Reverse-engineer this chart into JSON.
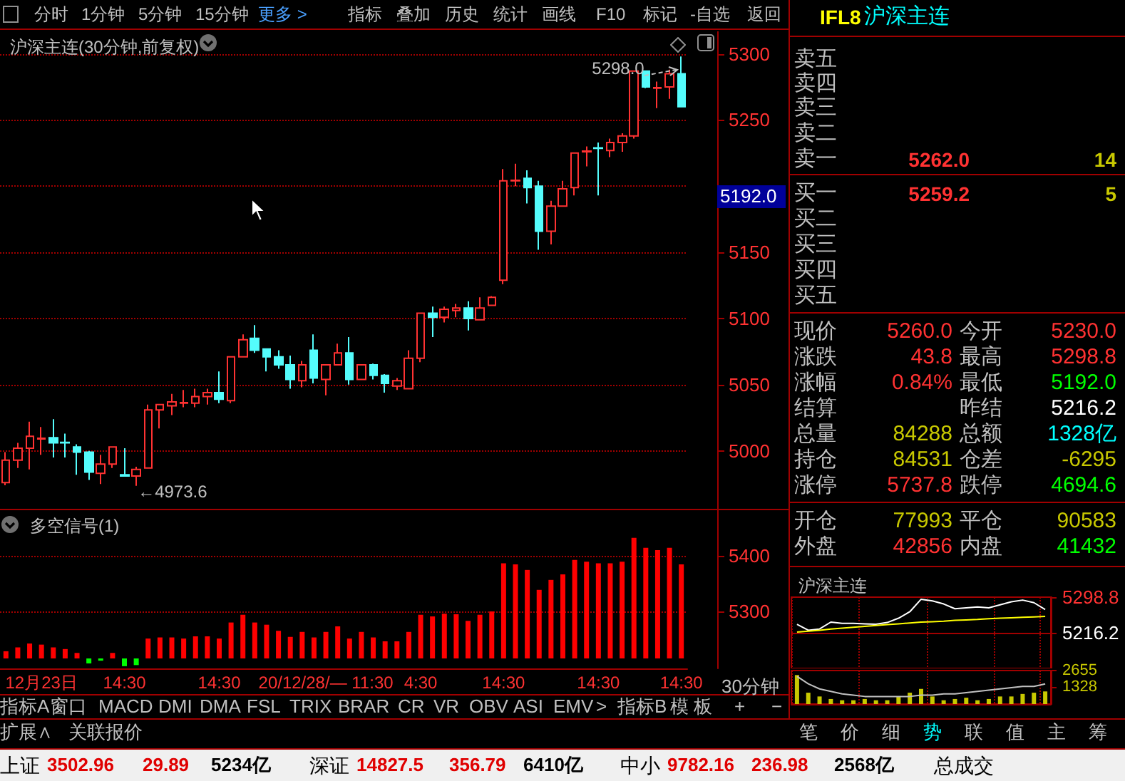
{
  "chart_data": [
    {
      "type": "other",
      "annotations": [
        "分时",
        "1分钟",
        "5分钟",
        "15分钟",
        "更多 >",
        "指标",
        "叠加",
        "历史",
        "统计",
        "画线",
        "F10",
        "标记",
        "-自选",
        "返回"
      ]
    },
    {
      "type": "candlestick",
      "title": "沪深主连(30分钟,前复权)",
      "categories": [
        null,
        null,
        null,
        null,
        null,
        null,
        null,
        null,
        null,
        null,
        null,
        null,
        null,
        null,
        null,
        null,
        null,
        null,
        null,
        null,
        null,
        null,
        null,
        null,
        null,
        null,
        null,
        null,
        null,
        null,
        null,
        null,
        null,
        null,
        null,
        null,
        null,
        null,
        null,
        null,
        null,
        null,
        null,
        null,
        null,
        null,
        null,
        null,
        null,
        null,
        null,
        null,
        null,
        null,
        null,
        null,
        null,
        null
      ],
      "ohlc": [
        [
          4976,
          4999,
          4974,
          4993
        ],
        [
          4993,
          5006,
          4987,
          5002
        ],
        [
          5002,
          5022,
          4986,
          5011
        ],
        [
          5009,
          5018,
          4997,
          5009.5
        ],
        [
          5010,
          5024,
          4995,
          5006
        ],
        [
          5006.5,
          5013,
          4995,
          5006
        ],
        [
          5003,
          5005,
          4982,
          4999
        ],
        [
          4999,
          5000,
          4978,
          4984
        ],
        [
          4983,
          4997,
          4975,
          4990
        ],
        [
          4990,
          5003,
          4987,
          5003
        ],
        [
          4982,
          5002,
          4981,
          4981
        ],
        [
          4981,
          4988,
          4973.6,
          4986
        ],
        [
          4987,
          5035,
          4987,
          5031
        ],
        [
          5031,
          5035,
          5017,
          5035
        ],
        [
          5034,
          5043,
          5027,
          5037
        ],
        [
          5036,
          5046,
          5033,
          5036.5
        ],
        [
          5036,
          5047,
          5033,
          5041
        ],
        [
          5041,
          5047,
          5035,
          5044
        ],
        [
          5044,
          5060,
          5036,
          5039
        ],
        [
          5038,
          5071,
          5036,
          5071
        ],
        [
          5071,
          5088,
          5071,
          5084
        ],
        [
          5085,
          5095,
          5074,
          5076
        ],
        [
          5077,
          5077,
          5060,
          5071
        ],
        [
          5071,
          5076,
          5062,
          5065
        ],
        [
          5065,
          5072,
          5047,
          5054
        ],
        [
          5053,
          5068,
          5048,
          5065
        ],
        [
          5076,
          5088,
          5051,
          5055
        ],
        [
          5054,
          5065,
          5042,
          5065
        ],
        [
          5065,
          5081,
          5065,
          5074
        ],
        [
          5074,
          5086,
          5050,
          5054
        ],
        [
          5054,
          5065,
          5054,
          5065
        ],
        [
          5065,
          5066,
          5054,
          5057
        ],
        [
          5057,
          5058,
          5044,
          5051
        ],
        [
          5049,
          5055,
          5046,
          5053
        ],
        [
          5047,
          5076,
          5047,
          5070
        ],
        [
          5070,
          5104,
          5067,
          5104
        ],
        [
          5104,
          5109,
          5086,
          5101
        ],
        [
          5101,
          5109,
          5097,
          5107
        ],
        [
          5106,
          5111,
          5101,
          5108
        ],
        [
          5108,
          5113,
          5091,
          5100
        ],
        [
          5099,
          5116,
          5099,
          5108
        ],
        [
          5110,
          5117,
          5110,
          5116
        ],
        [
          5129,
          5213,
          5126,
          5204
        ],
        [
          5204,
          5217,
          5200,
          5204.5
        ],
        [
          5206,
          5212,
          5187,
          5199
        ],
        [
          5200,
          5204,
          5152,
          5166
        ],
        [
          5166,
          5189,
          5156,
          5185
        ],
        [
          5185,
          5204,
          5185,
          5198
        ],
        [
          5199,
          5225,
          5193,
          5225
        ],
        [
          5226,
          5230,
          5215,
          5226.5
        ],
        [
          5229,
          5233,
          5193,
          5228.5
        ],
        [
          5227,
          5236,
          5222,
          5233
        ],
        [
          5233,
          5240,
          5226,
          5238
        ],
        [
          5238,
          5287,
          5236,
          5287
        ],
        [
          5287,
          5287,
          5274,
          5275
        ],
        [
          5274,
          5279,
          5259,
          5274.5
        ],
        [
          5275,
          5288,
          5266,
          5285
        ],
        [
          5285,
          5298,
          5260,
          5260
        ]
      ],
      "colors": [
        "#ff3232",
        "#ff3232",
        "#ff3232",
        "#ff3232",
        "#54fcfc",
        "#54fcfc",
        "#54fcfc",
        "#54fcfc",
        "#ff3232",
        "#ff3232",
        "#54fcfc",
        "#ff3232",
        "#ff3232",
        "#ff3232",
        "#ff3232",
        "#ff3232",
        "#ff3232",
        "#ff3232",
        "#54fcfc",
        "#ff3232",
        "#ff3232",
        "#54fcfc",
        "#54fcfc",
        "#54fcfc",
        "#54fcfc",
        "#ff3232",
        "#54fcfc",
        "#ff3232",
        "#ff3232",
        "#54fcfc",
        "#ff3232",
        "#54fcfc",
        "#54fcfc",
        "#ff3232",
        "#ff3232",
        "#ff3232",
        "#54fcfc",
        "#ff3232",
        "#ff3232",
        "#54fcfc",
        "#ff3232",
        "#ff3232",
        "#ff3232",
        "#ff3232",
        "#54fcfc",
        "#54fcfc",
        "#ff3232",
        "#ff3232",
        "#ff3232",
        "#ff3232",
        "#54fcfc",
        "#ff3232",
        "#ff3232",
        "#ff3232",
        "#54fcfc",
        "#ff3232",
        "#ff3232",
        "#54fcfc"
      ],
      "ylim": [
        4953,
        5317
      ],
      "yticks": [
        5000,
        5050,
        5100,
        5150,
        {
          "value": 5200,
          "label": null
        },
        5250,
        5300
      ],
      "grid": "y",
      "tick_labels": "y",
      "annotations": [
        "←4973.6",
        "5298.0",
        "5192.0"
      ]
    },
    {
      "type": "bar",
      "title": "多空信号(1)",
      "xlabel": "30分钟",
      "categories": [
        null,
        null,
        null,
        "12月23日",
        null,
        null,
        null,
        null,
        null,
        null,
        "14:30",
        null,
        null,
        null,
        null,
        null,
        null,
        null,
        "14:30",
        null,
        null,
        null,
        null,
        null,
        null,
        null,
        null,
        "20/12/28/— 11:30",
        null,
        null,
        null,
        null,
        null,
        null,
        null,
        "4:30",
        null,
        null,
        null,
        null,
        null,
        null,
        "14:30",
        null,
        null,
        null,
        null,
        null,
        null,
        null,
        "14:30",
        null,
        null,
        null,
        null,
        null,
        null,
        "14:30"
      ],
      "values": [
        13,
        20,
        27,
        25,
        20,
        17,
        10,
        -9,
        -4,
        10,
        -14,
        -12,
        36,
        38,
        38,
        36,
        40,
        40,
        36,
        65,
        79,
        65,
        61,
        50,
        39,
        48,
        38,
        48,
        58,
        36,
        48,
        38,
        31,
        31,
        48,
        79,
        76,
        81,
        80,
        68,
        79,
        85,
        172,
        170,
        160,
        124,
        142,
        152,
        178,
        175,
        172,
        172,
        175,
        218,
        200,
        196,
        200,
        170
      ],
      "base": [
        5215,
        5215,
        5215,
        5215,
        5215,
        5215,
        5215,
        5215,
        5215,
        5215,
        5215,
        5215,
        5215,
        5215,
        5215,
        5215,
        5215,
        5215,
        5215,
        5215,
        5215,
        5215,
        5215,
        5215,
        5215,
        5215,
        5215,
        5215,
        5215,
        5215,
        5215,
        5215,
        5215,
        5215,
        5215,
        5215,
        5215,
        5215,
        5215,
        5215,
        5215,
        5215,
        5215,
        5215,
        5215,
        5215,
        5215,
        5215,
        5215,
        5215,
        5215,
        5215,
        5215,
        5215,
        5215,
        5215,
        5215,
        5215
      ],
      "colors": [
        "#ff0000",
        "#ff0000",
        "#ff0000",
        "#ff0000",
        "#ff0000",
        "#ff0000",
        "#ff0000",
        "#00ff00",
        "#00ff00",
        "#ff0000",
        "#00ff00",
        "#00ff00",
        "#ff0000",
        "#ff0000",
        "#ff0000",
        "#ff0000",
        "#ff0000",
        "#ff0000",
        "#ff0000",
        "#ff0000",
        "#ff0000",
        "#ff0000",
        "#ff0000",
        "#ff0000",
        "#ff0000",
        "#ff0000",
        "#ff0000",
        "#ff0000",
        "#ff0000",
        "#ff0000",
        "#ff0000",
        "#ff0000",
        "#ff0000",
        "#ff0000",
        "#ff0000",
        "#ff0000",
        "#ff0000",
        "#ff0000",
        "#ff0000",
        "#ff0000",
        "#ff0000",
        "#ff0000",
        "#ff0000",
        "#ff0000",
        "#ff0000",
        "#ff0000",
        "#ff0000",
        "#ff0000",
        "#ff0000",
        "#ff0000",
        "#ff0000",
        "#ff0000",
        "#ff0000",
        "#ff0000",
        "#ff0000",
        "#ff0000",
        "#ff0000",
        "#ff0000"
      ],
      "ylim": [
        5197,
        5483
      ],
      "yticks": [
        5300,
        5400
      ],
      "grid": "y"
    },
    {
      "type": "other",
      "annotations": [
        "IFL8",
        "沪深主连",
        "卖五",
        "卖四",
        "卖三",
        "卖二",
        "卖一",
        "5262.0",
        "14",
        "买一",
        "5259.2",
        "5",
        "买二",
        "买三",
        "买四",
        "买五",
        "现价",
        "5260.0",
        "今开",
        "5230.0",
        "涨跌",
        "43.8",
        "最高",
        "5298.8",
        "涨幅",
        "0.84%",
        "最低",
        "5192.0",
        "结算",
        "昨结",
        "5216.2",
        "总量",
        "84288",
        "总额",
        "1328亿",
        "持仓",
        "84531",
        "仓差",
        "-6295",
        "涨停",
        "5737.8",
        "跌停",
        "4694.6",
        "开仓",
        "77993",
        "平仓",
        "90583",
        "外盘",
        "42856",
        "内盘",
        "41432"
      ]
    },
    {
      "type": "line",
      "title": "沪深主连",
      "categories": [
        null,
        null,
        null,
        null,
        null,
        null,
        null,
        null,
        null,
        null,
        null,
        null,
        null,
        null,
        null,
        null,
        null,
        null,
        null,
        null,
        null,
        null,
        null
      ],
      "series": [
        {
          "color": "#ffffff",
          "values": [
            5236,
            5222,
            5225,
            5241,
            5238,
            5238,
            5237,
            5236,
            5240,
            5250,
            5265,
            5294,
            5290,
            5283,
            5272,
            5274,
            5276,
            5274,
            5281,
            5288,
            5292,
            5286,
            5270
          ]
        },
        {
          "color": "#ffff00",
          "values": [
            5218,
            5220,
            5222,
            5225,
            5227,
            5229,
            5231,
            5233,
            5235,
            5237,
            5239,
            5241,
            5242,
            5243,
            5245,
            5246,
            5247,
            5249,
            5250,
            5251,
            5252,
            5253,
            5254
          ]
        }
      ],
      "ylim": [
        5133.6,
        5298.8
      ],
      "yticks": [
        5216.2,
        5298.8
      ],
      "grid": "x",
      "tick_labels": "y",
      "ref_lines": [
        {
          "axis": "y",
          "value": 5216.2,
          "color": "#a00000"
        }
      ]
    },
    {
      "type": "line",
      "categories": [
        null,
        null,
        null,
        null,
        null,
        null,
        null,
        null,
        null,
        null,
        null,
        null,
        null,
        null,
        null,
        null,
        null,
        null,
        null,
        null,
        null,
        null,
        null
      ],
      "series": [
        {
          "type": "bar",
          "color": "#c8c800",
          "values": [
            2300,
            900,
            600,
            400,
            300,
            300,
            400,
            300,
            300,
            600,
            900,
            1200,
            600,
            300,
            400,
            500,
            300,
            400,
            600,
            600,
            800,
            900,
            1000
          ]
        },
        {
          "color": "#c0c0c0",
          "values": [
            2200,
            1600,
            1200,
            1000,
            800,
            700,
            600,
            600,
            600,
            600,
            600,
            700,
            700,
            800,
            800,
            900,
            1000,
            1100,
            1200,
            1300,
            1400,
            1400,
            1600
          ]
        }
      ],
      "ylim": [
        0,
        2655
      ],
      "yticks": [
        1328,
        2655
      ],
      "grid": "x",
      "tick_labels": "y"
    },
    {
      "type": "other",
      "annotations": [
        "指标A",
        "窗口",
        "MACD",
        "DMI",
        "DMA",
        "FSL",
        "TRIX",
        "BRAR",
        "CR",
        "VR",
        "OBV",
        "ASI",
        "EMV",
        ">",
        "指标B",
        "模 板",
        "+",
        "−",
        "扩展∧",
        "关联报价",
        "笔",
        "价",
        "细",
        "势",
        "联",
        "值",
        "主",
        "筹"
      ]
    },
    {
      "type": "other",
      "annotations": [
        "上证",
        "3502.96",
        "29.89",
        "5234亿",
        "深证",
        "14827.5",
        "356.79",
        "6410亿",
        "中小",
        "9782.16",
        "236.98",
        "2568亿",
        "总成交"
      ]
    }
  ]
}
